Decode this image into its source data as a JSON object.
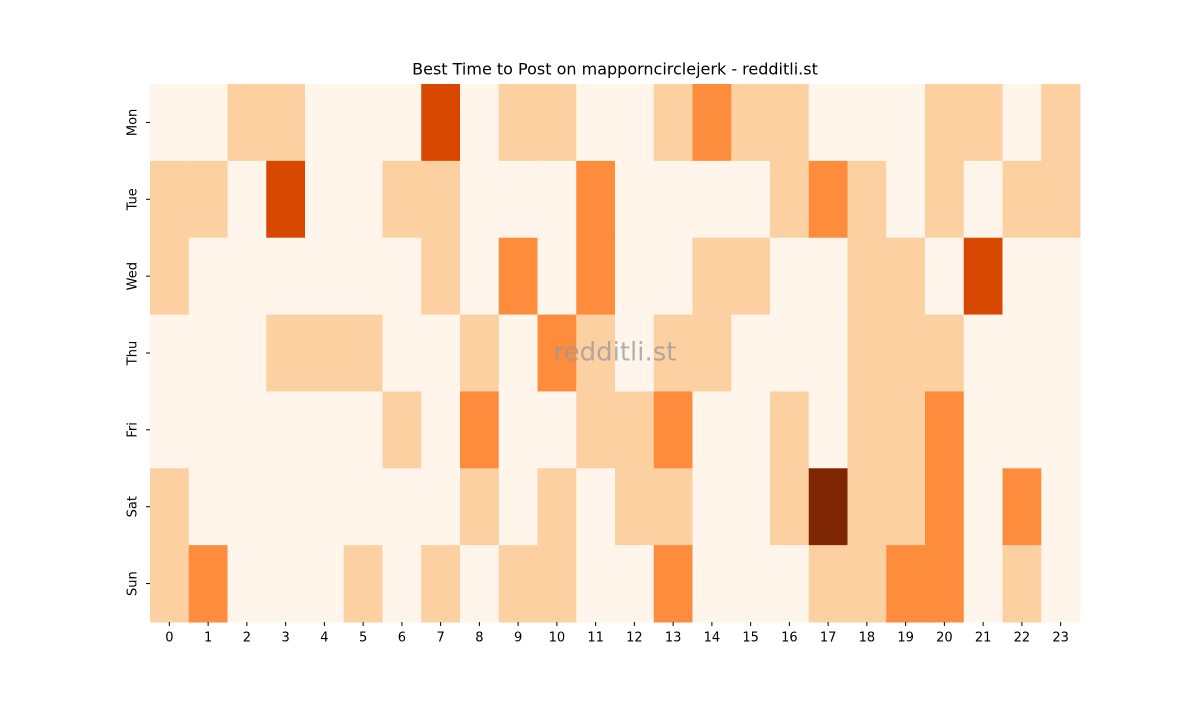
{
  "chart_data": {
    "type": "heatmap",
    "title": "Best Time to Post on mapporncirclejerk - redditli.st",
    "watermark": "redditli.st",
    "x": [
      0,
      1,
      2,
      3,
      4,
      5,
      6,
      7,
      8,
      9,
      10,
      11,
      12,
      13,
      14,
      15,
      16,
      17,
      18,
      19,
      20,
      21,
      22,
      23
    ],
    "categories": [
      "Mon",
      "Tue",
      "Wed",
      "Thu",
      "Fri",
      "Sat",
      "Sun"
    ],
    "values": [
      [
        0,
        0,
        1,
        1,
        0,
        0,
        0,
        3,
        0,
        1,
        1,
        0,
        0,
        1,
        2,
        1,
        1,
        0,
        0,
        0,
        1,
        1,
        0,
        1
      ],
      [
        1,
        1,
        0,
        3,
        0,
        0,
        1,
        1,
        0,
        0,
        0,
        2,
        0,
        0,
        0,
        0,
        1,
        2,
        1,
        0,
        1,
        0,
        1,
        1
      ],
      [
        1,
        0,
        0,
        0,
        0,
        0,
        0,
        1,
        0,
        2,
        0,
        2,
        0,
        0,
        1,
        1,
        0,
        0,
        1,
        1,
        0,
        3,
        0,
        0
      ],
      [
        0,
        0,
        0,
        1,
        1,
        1,
        0,
        0,
        1,
        0,
        2,
        1,
        0,
        1,
        1,
        0,
        0,
        0,
        1,
        1,
        1,
        0,
        0,
        0
      ],
      [
        0,
        0,
        0,
        0,
        0,
        0,
        1,
        0,
        2,
        0,
        0,
        1,
        1,
        2,
        0,
        0,
        1,
        0,
        1,
        1,
        2,
        0,
        0,
        0
      ],
      [
        1,
        0,
        0,
        0,
        0,
        0,
        0,
        0,
        1,
        0,
        1,
        0,
        1,
        1,
        0,
        0,
        1,
        4,
        1,
        1,
        2,
        0,
        2,
        0
      ],
      [
        1,
        2,
        0,
        0,
        0,
        1,
        0,
        1,
        0,
        1,
        1,
        0,
        0,
        2,
        0,
        0,
        0,
        1,
        1,
        2,
        2,
        0,
        1,
        0
      ]
    ],
    "vlim": [
      0,
      4
    ],
    "colors": [
      "#fff5eb",
      "#fdd0a2",
      "#fd8d3c",
      "#d94801",
      "#7f2704"
    ]
  }
}
